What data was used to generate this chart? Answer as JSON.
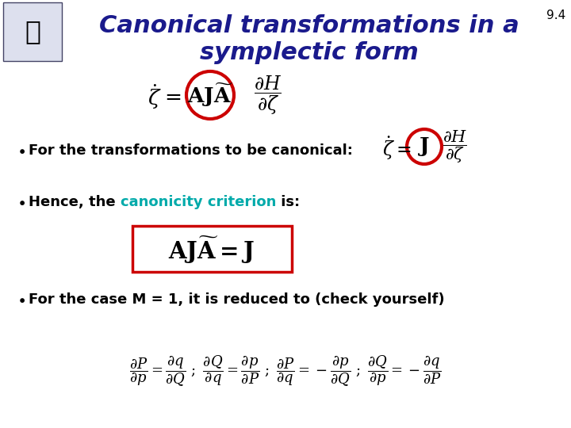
{
  "title_line1": "Canonical transformations in a",
  "title_line2": "symplectic form",
  "title_color": "#1a1a8c",
  "title_fontsize": 22,
  "bg_color": "#ffffff",
  "slide_number": "9.4",
  "bullet1": "For the transformations to be canonical:",
  "bullet2_prefix": "Hence, the ",
  "bullet2_cyan": "canonicity criterion",
  "bullet2_suffix": " is:",
  "bullet3": "For the case M = 1, it is reduced to (check yourself)",
  "cyan_color": "#00aaaa",
  "red_color": "#cc0000",
  "dark_blue": "#1a1a8c",
  "black": "#000000"
}
